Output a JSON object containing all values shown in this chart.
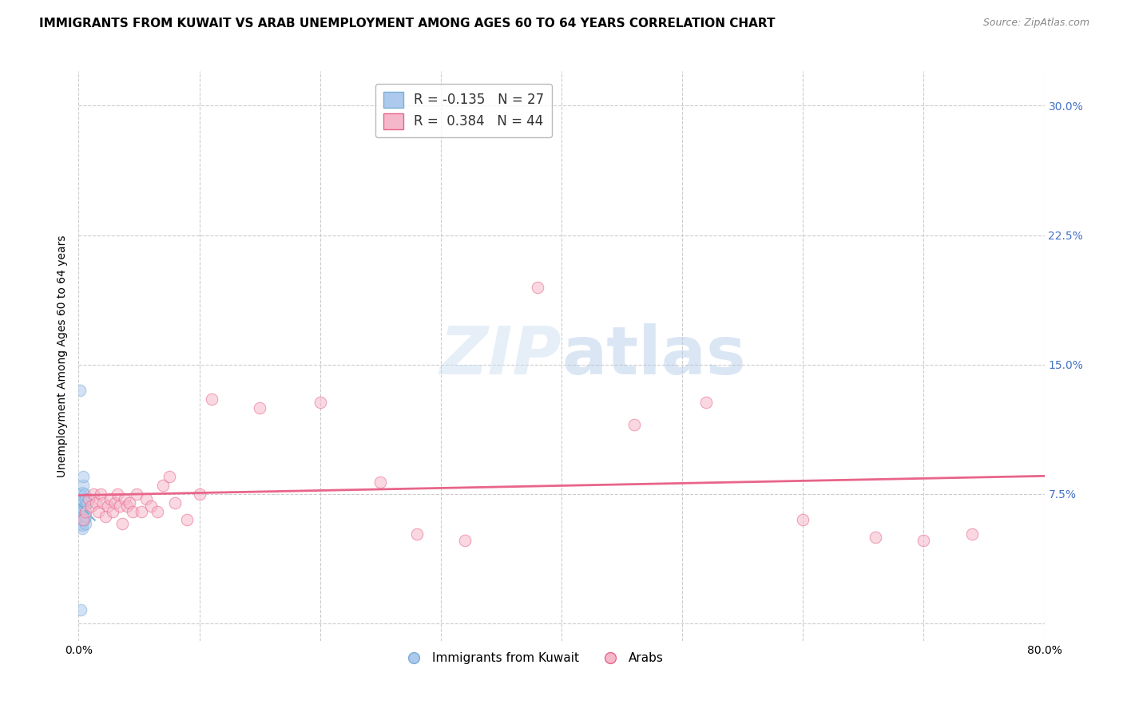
{
  "title": "IMMIGRANTS FROM KUWAIT VS ARAB UNEMPLOYMENT AMONG AGES 60 TO 64 YEARS CORRELATION CHART",
  "source": "Source: ZipAtlas.com",
  "ylabel": "Unemployment Among Ages 60 to 64 years",
  "xlim": [
    0.0,
    0.8
  ],
  "ylim": [
    -0.01,
    0.32
  ],
  "xticks": [
    0.0,
    0.1,
    0.2,
    0.3,
    0.4,
    0.5,
    0.6,
    0.7,
    0.8
  ],
  "xticklabels": [
    "0.0%",
    "",
    "",
    "",
    "",
    "",
    "",
    "",
    "80.0%"
  ],
  "yticks_right": [
    0.0,
    0.075,
    0.15,
    0.225,
    0.3
  ],
  "yticklabels_right": [
    "",
    "7.5%",
    "15.0%",
    "22.5%",
    "30.0%"
  ],
  "background_color": "#ffffff",
  "watermark_part1": "ZIP",
  "watermark_part2": "atlas",
  "legend1_label": "R = -0.135   N = 27",
  "legend2_label": "R =  0.384   N = 44",
  "legend1_color": "#adc9ee",
  "legend2_color": "#f5b8cb",
  "trendline1_color": "#7aafd4",
  "trendline2_color": "#e8658a",
  "trendline1_style": "--",
  "trendline2_style": "-",
  "scatter_blue_x": [
    0.001,
    0.001,
    0.002,
    0.002,
    0.002,
    0.002,
    0.002,
    0.003,
    0.003,
    0.003,
    0.003,
    0.003,
    0.004,
    0.004,
    0.004,
    0.004,
    0.004,
    0.005,
    0.005,
    0.005,
    0.005,
    0.006,
    0.006,
    0.006,
    0.007,
    0.002,
    0.001
  ],
  "scatter_blue_y": [
    0.062,
    0.068,
    0.058,
    0.06,
    0.063,
    0.072,
    0.075,
    0.055,
    0.057,
    0.062,
    0.065,
    0.076,
    0.06,
    0.066,
    0.07,
    0.08,
    0.085,
    0.06,
    0.063,
    0.068,
    0.075,
    0.058,
    0.062,
    0.072,
    0.07,
    0.008,
    0.135
  ],
  "scatter_pink_x": [
    0.004,
    0.006,
    0.008,
    0.01,
    0.012,
    0.014,
    0.016,
    0.018,
    0.02,
    0.022,
    0.024,
    0.026,
    0.028,
    0.03,
    0.032,
    0.034,
    0.036,
    0.038,
    0.04,
    0.042,
    0.045,
    0.048,
    0.052,
    0.056,
    0.06,
    0.065,
    0.07,
    0.075,
    0.08,
    0.09,
    0.1,
    0.11,
    0.15,
    0.2,
    0.25,
    0.38,
    0.46,
    0.52,
    0.6,
    0.66,
    0.7,
    0.74,
    0.28,
    0.32
  ],
  "scatter_pink_y": [
    0.06,
    0.065,
    0.072,
    0.068,
    0.075,
    0.07,
    0.065,
    0.075,
    0.07,
    0.062,
    0.068,
    0.072,
    0.065,
    0.07,
    0.075,
    0.068,
    0.058,
    0.072,
    0.068,
    0.07,
    0.065,
    0.075,
    0.065,
    0.072,
    0.068,
    0.065,
    0.08,
    0.085,
    0.07,
    0.06,
    0.075,
    0.13,
    0.125,
    0.128,
    0.082,
    0.195,
    0.115,
    0.128,
    0.06,
    0.05,
    0.048,
    0.052,
    0.052,
    0.048
  ],
  "dot_size": 110,
  "dot_alpha": 0.55,
  "grid_color": "#cccccc",
  "grid_style": "--",
  "title_fontsize": 11,
  "axis_label_fontsize": 10,
  "tick_fontsize": 10,
  "legend_fontsize": 12,
  "legend_R_color": "#333333",
  "legend_N_color": "#4472c4",
  "right_tick_color": "#4472c4"
}
